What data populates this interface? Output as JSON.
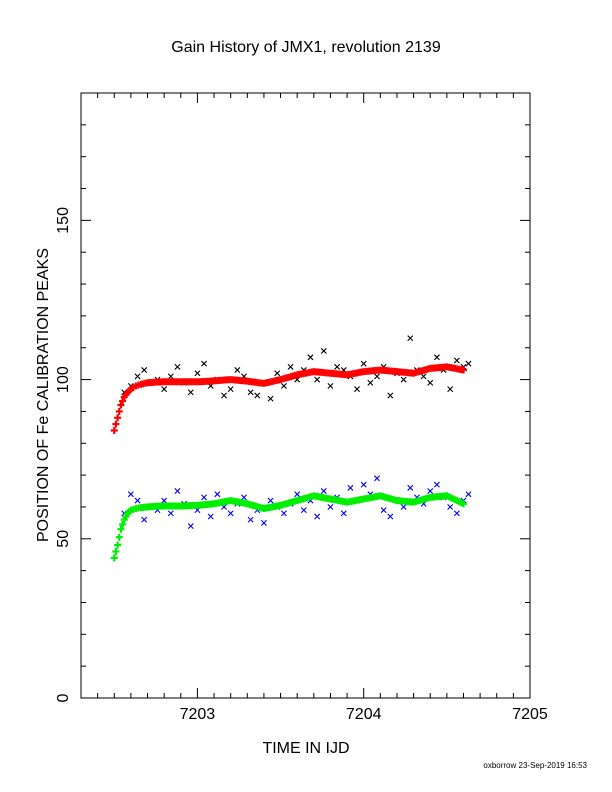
{
  "chart_data": {
    "type": "scatter",
    "title": "Gain History of JMX1, revolution 2139",
    "xlabel": "TIME IN IJD",
    "ylabel": "POSITION OF Fe CALIBRATION PEAKS",
    "xlim": [
      7202.3,
      7205.0
    ],
    "ylim": [
      0,
      190
    ],
    "x_ticks": [
      "7203",
      "7204",
      "7205"
    ],
    "y_ticks": [
      "0",
      "50",
      "100",
      "150"
    ],
    "grid": false,
    "credit": "oxborrow 23-Sep-2019 16:53",
    "series": [
      {
        "color": "#000000",
        "marker": "x",
        "x": [
          7202.56,
          7202.6,
          7202.64,
          7202.68,
          7202.72,
          7202.76,
          7202.8,
          7202.84,
          7202.88,
          7202.92,
          7202.96,
          7203.0,
          7203.04,
          7203.08,
          7203.12,
          7203.16,
          7203.2,
          7203.24,
          7203.28,
          7203.32,
          7203.36,
          7203.4,
          7203.44,
          7203.48,
          7203.52,
          7203.56,
          7203.6,
          7203.64,
          7203.68,
          7203.72,
          7203.76,
          7203.8,
          7203.84,
          7203.88,
          7203.92,
          7203.96,
          7204.0,
          7204.04,
          7204.08,
          7204.12,
          7204.16,
          7204.2,
          7204.24,
          7204.28,
          7204.32,
          7204.36,
          7204.4,
          7204.44,
          7204.48,
          7204.52,
          7204.56,
          7204.6,
          7204.63
        ],
        "y": [
          96,
          98,
          101,
          103,
          99,
          100,
          97,
          101,
          104,
          99,
          96,
          102,
          105,
          98,
          100,
          95,
          97,
          103,
          101,
          96,
          95,
          99,
          94,
          102,
          98,
          104,
          100,
          103,
          107,
          100,
          109,
          98,
          104,
          103,
          101,
          97,
          105,
          99,
          101,
          104,
          95,
          102,
          100,
          113,
          103,
          101,
          99,
          107,
          103,
          97,
          106,
          104,
          105
        ]
      },
      {
        "color": "#ff0000",
        "marker": "+",
        "x": [
          7202.5,
          7202.52,
          7202.54,
          7202.56,
          7202.58,
          7202.6,
          7202.63,
          7202.66,
          7202.7,
          7202.75,
          7202.8,
          7202.9,
          7203.0,
          7203.1,
          7203.2,
          7203.3,
          7203.4,
          7203.5,
          7203.6,
          7203.7,
          7203.8,
          7203.9,
          7204.0,
          7204.1,
          7204.2,
          7204.3,
          7204.4,
          7204.5,
          7204.6
        ],
        "y": [
          84,
          88,
          92,
          94.5,
          96,
          97,
          98,
          98.5,
          99,
          99.2,
          99.3,
          99.3,
          99.3,
          99.6,
          100,
          99.5,
          98.8,
          100,
          101.5,
          102.5,
          102,
          101.5,
          102.5,
          103,
          102.5,
          102,
          103.5,
          104,
          103
        ]
      },
      {
        "color": "#0000ff",
        "marker": "x",
        "x": [
          7202.56,
          7202.6,
          7202.64,
          7202.68,
          7202.72,
          7202.76,
          7202.8,
          7202.84,
          7202.88,
          7202.92,
          7202.96,
          7203.0,
          7203.04,
          7203.08,
          7203.12,
          7203.16,
          7203.2,
          7203.24,
          7203.28,
          7203.32,
          7203.36,
          7203.4,
          7203.44,
          7203.48,
          7203.52,
          7203.56,
          7203.6,
          7203.64,
          7203.68,
          7203.72,
          7203.76,
          7203.8,
          7203.84,
          7203.88,
          7203.92,
          7203.96,
          7204.0,
          7204.04,
          7204.08,
          7204.12,
          7204.16,
          7204.2,
          7204.24,
          7204.28,
          7204.32,
          7204.36,
          7204.4,
          7204.44,
          7204.48,
          7204.52,
          7204.56,
          7204.6,
          7204.63
        ],
        "y": [
          58,
          64,
          62,
          56,
          60,
          59,
          62,
          58,
          65,
          61,
          54,
          59,
          63,
          57,
          64,
          60,
          58,
          61,
          63,
          56,
          59,
          55,
          62,
          60,
          58,
          61,
          64,
          59,
          62,
          57,
          65,
          60,
          63,
          58,
          66,
          62,
          67,
          64,
          69,
          59,
          57,
          62,
          60,
          66,
          63,
          61,
          65,
          67,
          63,
          60,
          58,
          62,
          64
        ]
      },
      {
        "color": "#00ee00",
        "marker": "+",
        "x": [
          7202.5,
          7202.52,
          7202.54,
          7202.56,
          7202.58,
          7202.6,
          7202.63,
          7202.66,
          7202.7,
          7202.75,
          7202.8,
          7202.9,
          7203.0,
          7203.1,
          7203.2,
          7203.3,
          7203.4,
          7203.5,
          7203.6,
          7203.7,
          7203.8,
          7203.9,
          7204.0,
          7204.1,
          7204.2,
          7204.3,
          7204.4,
          7204.5,
          7204.6
        ],
        "y": [
          44,
          48,
          53,
          56,
          58,
          59,
          59.5,
          59.8,
          60,
          60.2,
          60.3,
          60.3,
          60.5,
          61,
          62,
          61,
          59.5,
          60.5,
          62,
          63.5,
          62.5,
          61.5,
          62.5,
          63.5,
          62,
          61.5,
          63,
          63.5,
          61
        ]
      }
    ]
  }
}
